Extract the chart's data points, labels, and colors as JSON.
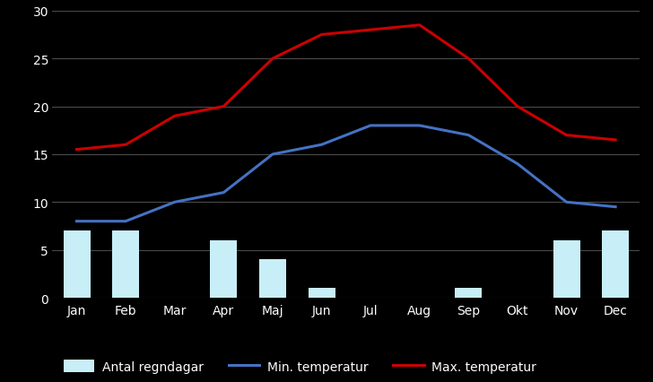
{
  "months": [
    "Jan",
    "Feb",
    "Mar",
    "Apr",
    "Maj",
    "Jun",
    "Jul",
    "Aug",
    "Sep",
    "Okt",
    "Nov",
    "Dec"
  ],
  "rain_days": [
    7,
    7,
    0,
    6,
    4,
    1,
    0,
    0,
    1,
    0,
    6,
    7
  ],
  "min_temp": [
    8,
    8,
    10,
    11,
    15,
    16,
    18,
    18,
    17,
    14,
    10,
    9.5
  ],
  "max_temp": [
    15.5,
    16,
    19,
    20,
    25,
    27.5,
    28,
    28.5,
    25,
    20,
    17,
    16.5
  ],
  "bar_color": "#c8eef8",
  "min_temp_color": "#4472c4",
  "max_temp_color": "#cc0000",
  "background_color": "#000000",
  "text_color": "#ffffff",
  "grid_color": "#4a4a4a",
  "ylim": [
    0,
    30
  ],
  "yticks": [
    0,
    5,
    10,
    15,
    20,
    25,
    30
  ],
  "legend_labels": [
    "Antal regndagar",
    "Min. temperatur",
    "Max. temperatur"
  ],
  "bar_width": 0.55,
  "line_width": 2.2
}
